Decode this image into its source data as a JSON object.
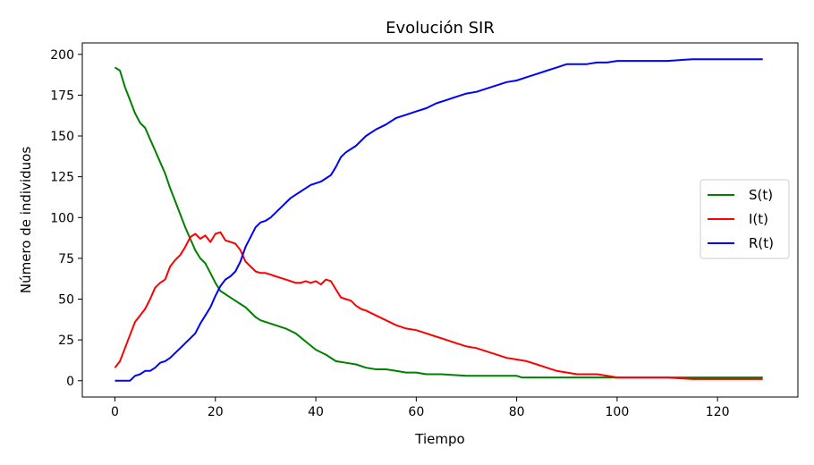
{
  "chart_data": {
    "type": "line",
    "title": "Evolución SIR",
    "xlabel": "Tiempo",
    "ylabel": "Número de individuos",
    "xlim": [
      -6.5,
      136
    ],
    "ylim": [
      -10,
      207
    ],
    "xticks": [
      0,
      20,
      40,
      60,
      80,
      100,
      120
    ],
    "yticks": [
      0,
      25,
      50,
      75,
      100,
      125,
      150,
      175,
      200
    ],
    "grid": false,
    "legend_position": "center-right",
    "series": [
      {
        "name": "S(t)",
        "color": "#008000",
        "x": [
          0,
          1,
          2,
          3,
          4,
          5,
          6,
          7,
          8,
          9,
          10,
          11,
          12,
          13,
          14,
          15,
          16,
          17,
          18,
          19,
          20,
          21,
          22,
          23,
          24,
          25,
          26,
          27,
          28,
          29,
          30,
          32,
          34,
          36,
          38,
          40,
          42,
          44,
          46,
          48,
          50,
          52,
          54,
          56,
          58,
          60,
          62,
          65,
          70,
          75,
          80,
          81,
          85,
          90,
          95,
          100,
          105,
          110,
          115,
          120,
          125,
          129
        ],
        "y": [
          192,
          190,
          180,
          172,
          164,
          158,
          155,
          148,
          141,
          134,
          127,
          118,
          110,
          102,
          94,
          87,
          80,
          75,
          72,
          66,
          60,
          55,
          53,
          51,
          49,
          47,
          45,
          42,
          39,
          37,
          36,
          34,
          32,
          29,
          24,
          19,
          16,
          12,
          11,
          10,
          8,
          7,
          7,
          6,
          5,
          5,
          4,
          4,
          3,
          3,
          3,
          2,
          2,
          2,
          2,
          2,
          2,
          2,
          2,
          2,
          2,
          2
        ]
      },
      {
        "name": "I(t)",
        "color": "#ff0000",
        "x": [
          0,
          1,
          2,
          3,
          4,
          5,
          6,
          7,
          8,
          9,
          10,
          11,
          12,
          13,
          14,
          15,
          16,
          17,
          18,
          19,
          20,
          21,
          22,
          23,
          24,
          25,
          26,
          27,
          28,
          29,
          30,
          31,
          32,
          33,
          34,
          35,
          36,
          37,
          38,
          39,
          40,
          41,
          42,
          43,
          44,
          45,
          46,
          47,
          48,
          49,
          50,
          52,
          54,
          56,
          58,
          60,
          62,
          64,
          66,
          68,
          70,
          72,
          74,
          76,
          78,
          80,
          82,
          84,
          86,
          88,
          90,
          92,
          94,
          96,
          98,
          100,
          105,
          110,
          115,
          120,
          125,
          129
        ],
        "y": [
          8,
          12,
          20,
          28,
          36,
          40,
          44,
          50,
          57,
          60,
          62,
          70,
          74,
          77,
          82,
          88,
          90,
          87,
          89,
          85,
          90,
          91,
          86,
          85,
          84,
          80,
          73,
          70,
          67,
          66,
          66,
          65,
          64,
          63,
          62,
          61,
          60,
          60,
          61,
          60,
          61,
          59,
          62,
          61,
          56,
          51,
          50,
          49,
          46,
          44,
          43,
          40,
          37,
          34,
          32,
          31,
          29,
          27,
          25,
          23,
          21,
          20,
          18,
          16,
          14,
          13,
          12,
          10,
          8,
          6,
          5,
          4,
          4,
          4,
          3,
          2,
          2,
          2,
          1,
          1,
          1,
          1
        ]
      },
      {
        "name": "R(t)",
        "color": "#0000ff",
        "x": [
          0,
          1,
          2,
          3,
          4,
          5,
          6,
          7,
          8,
          9,
          10,
          11,
          12,
          13,
          14,
          15,
          16,
          17,
          18,
          19,
          20,
          21,
          22,
          23,
          24,
          25,
          26,
          27,
          28,
          29,
          30,
          31,
          32,
          33,
          34,
          35,
          36,
          37,
          38,
          39,
          40,
          41,
          42,
          43,
          44,
          45,
          46,
          47,
          48,
          49,
          50,
          52,
          54,
          56,
          58,
          60,
          62,
          64,
          66,
          68,
          70,
          72,
          74,
          76,
          78,
          80,
          82,
          84,
          86,
          88,
          90,
          92,
          94,
          96,
          98,
          100,
          105,
          110,
          115,
          120,
          125,
          129
        ],
        "y": [
          0,
          0,
          0,
          0,
          3,
          4,
          6,
          6,
          8,
          11,
          12,
          14,
          17,
          20,
          23,
          26,
          29,
          35,
          40,
          45,
          52,
          58,
          62,
          64,
          67,
          73,
          82,
          88,
          94,
          97,
          98,
          100,
          103,
          106,
          109,
          112,
          114,
          116,
          118,
          120,
          121,
          122,
          124,
          126,
          131,
          137,
          140,
          142,
          144,
          147,
          150,
          154,
          157,
          161,
          163,
          165,
          167,
          170,
          172,
          174,
          176,
          177,
          179,
          181,
          183,
          184,
          186,
          188,
          190,
          192,
          194,
          194,
          194,
          195,
          195,
          196,
          196,
          196,
          197,
          197,
          197,
          197
        ]
      }
    ]
  }
}
